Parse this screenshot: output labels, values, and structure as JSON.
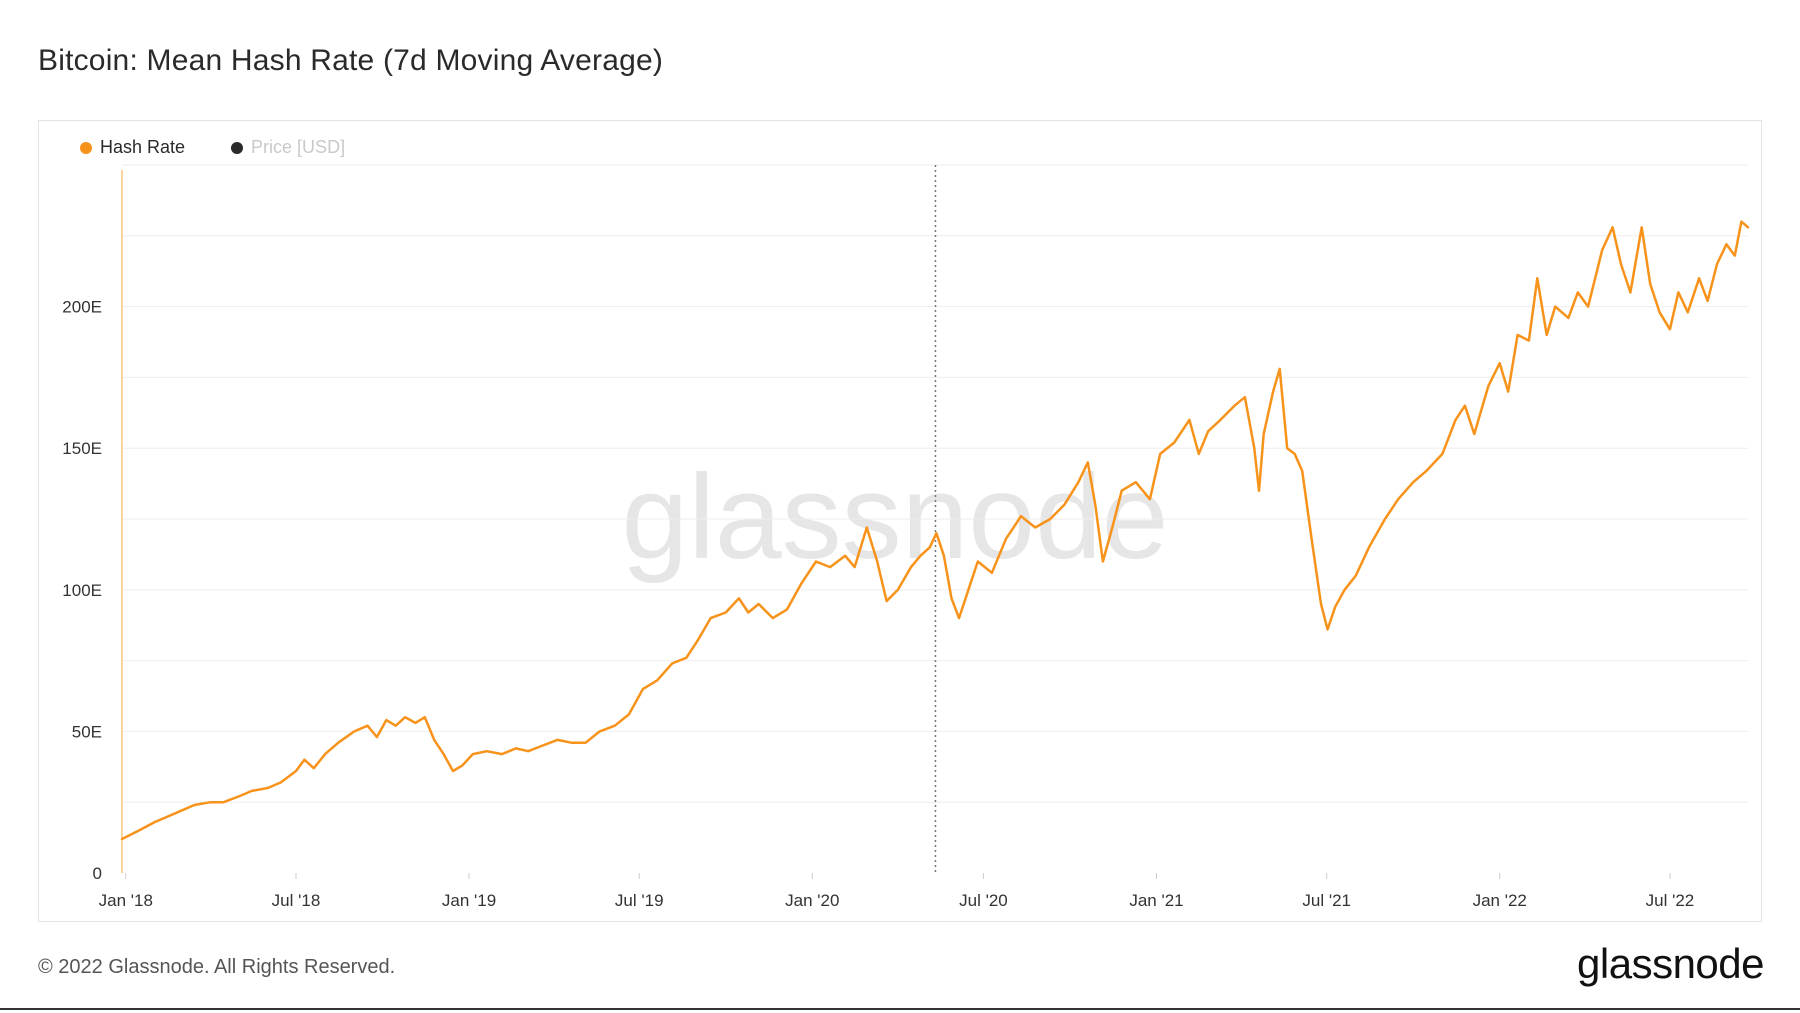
{
  "title": "Bitcoin: Mean Hash Rate (7d Moving Average)",
  "legend": [
    {
      "label": "Hash Rate",
      "color": "#f7931a",
      "active": true
    },
    {
      "label": "Price [USD]",
      "color": "#2b2b2b",
      "active": false
    }
  ],
  "footer": "© 2022 Glassnode. All Rights Reserved.",
  "brand": "glassnode",
  "watermark": "glassnode",
  "chart_data": {
    "type": "line",
    "title": "Bitcoin: Mean Hash Rate (7d Moving Average)",
    "y_unit": "EH/s",
    "ylim": [
      0,
      250
    ],
    "y_ticks": [
      0,
      50,
      100,
      150,
      200
    ],
    "y_tick_labels": [
      "0",
      "50E",
      "100E",
      "150E",
      "200E"
    ],
    "x_ticks": [
      "2018-01-01",
      "2018-07-01",
      "2019-01-01",
      "2019-07-01",
      "2020-01-01",
      "2020-07-01",
      "2021-01-01",
      "2021-07-01",
      "2022-01-01",
      "2022-07-01"
    ],
    "x_tick_labels": [
      "Jan '18",
      "Jul '18",
      "Jan '19",
      "Jul '19",
      "Jan '20",
      "Jul '20",
      "Jan '21",
      "Jul '21",
      "Jan '22",
      "Jul '22"
    ],
    "xlim": [
      "2017-12-28",
      "2022-09-22"
    ],
    "grid": true,
    "legend_position": "top-left",
    "annotations": [
      {
        "type": "vertical-dotted-line",
        "x": "2020-05-11"
      }
    ],
    "series": [
      {
        "name": "Hash Rate",
        "color": "#f7931a",
        "points": [
          [
            "2017-12-28",
            12
          ],
          [
            "2018-01-15",
            15
          ],
          [
            "2018-02-01",
            18
          ],
          [
            "2018-02-15",
            20
          ],
          [
            "2018-03-01",
            22
          ],
          [
            "2018-03-15",
            24
          ],
          [
            "2018-04-01",
            25
          ],
          [
            "2018-04-15",
            25
          ],
          [
            "2018-05-01",
            27
          ],
          [
            "2018-05-15",
            29
          ],
          [
            "2018-06-01",
            30
          ],
          [
            "2018-06-15",
            32
          ],
          [
            "2018-07-01",
            36
          ],
          [
            "2018-07-10",
            40
          ],
          [
            "2018-07-20",
            37
          ],
          [
            "2018-08-01",
            42
          ],
          [
            "2018-08-15",
            46
          ],
          [
            "2018-09-01",
            50
          ],
          [
            "2018-09-15",
            52
          ],
          [
            "2018-09-25",
            48
          ],
          [
            "2018-10-05",
            54
          ],
          [
            "2018-10-15",
            52
          ],
          [
            "2018-10-25",
            55
          ],
          [
            "2018-11-05",
            53
          ],
          [
            "2018-11-15",
            55
          ],
          [
            "2018-11-25",
            47
          ],
          [
            "2018-12-05",
            42
          ],
          [
            "2018-12-15",
            36
          ],
          [
            "2018-12-25",
            38
          ],
          [
            "2019-01-05",
            42
          ],
          [
            "2019-01-20",
            43
          ],
          [
            "2019-02-05",
            42
          ],
          [
            "2019-02-20",
            44
          ],
          [
            "2019-03-05",
            43
          ],
          [
            "2019-03-20",
            45
          ],
          [
            "2019-04-05",
            47
          ],
          [
            "2019-04-20",
            46
          ],
          [
            "2019-05-05",
            46
          ],
          [
            "2019-05-20",
            50
          ],
          [
            "2019-06-05",
            52
          ],
          [
            "2019-06-20",
            56
          ],
          [
            "2019-07-05",
            65
          ],
          [
            "2019-07-20",
            68
          ],
          [
            "2019-08-05",
            74
          ],
          [
            "2019-08-20",
            76
          ],
          [
            "2019-09-01",
            82
          ],
          [
            "2019-09-15",
            90
          ],
          [
            "2019-10-01",
            92
          ],
          [
            "2019-10-15",
            97
          ],
          [
            "2019-10-25",
            92
          ],
          [
            "2019-11-05",
            95
          ],
          [
            "2019-11-20",
            90
          ],
          [
            "2019-12-05",
            93
          ],
          [
            "2019-12-20",
            102
          ],
          [
            "2020-01-05",
            110
          ],
          [
            "2020-01-20",
            108
          ],
          [
            "2020-02-05",
            112
          ],
          [
            "2020-02-15",
            108
          ],
          [
            "2020-02-28",
            122
          ],
          [
            "2020-03-10",
            110
          ],
          [
            "2020-03-20",
            96
          ],
          [
            "2020-04-01",
            100
          ],
          [
            "2020-04-15",
            108
          ],
          [
            "2020-04-25",
            112
          ],
          [
            "2020-05-05",
            115
          ],
          [
            "2020-05-12",
            120
          ],
          [
            "2020-05-20",
            112
          ],
          [
            "2020-05-28",
            97
          ],
          [
            "2020-06-05",
            90
          ],
          [
            "2020-06-15",
            100
          ],
          [
            "2020-06-25",
            110
          ],
          [
            "2020-07-10",
            106
          ],
          [
            "2020-07-25",
            118
          ],
          [
            "2020-08-10",
            126
          ],
          [
            "2020-08-25",
            122
          ],
          [
            "2020-09-10",
            125
          ],
          [
            "2020-09-25",
            130
          ],
          [
            "2020-10-10",
            138
          ],
          [
            "2020-10-20",
            145
          ],
          [
            "2020-10-28",
            130
          ],
          [
            "2020-11-05",
            110
          ],
          [
            "2020-11-15",
            122
          ],
          [
            "2020-11-25",
            135
          ],
          [
            "2020-12-10",
            138
          ],
          [
            "2020-12-25",
            132
          ],
          [
            "2021-01-05",
            148
          ],
          [
            "2021-01-20",
            152
          ],
          [
            "2021-02-05",
            160
          ],
          [
            "2021-02-15",
            148
          ],
          [
            "2021-02-25",
            156
          ],
          [
            "2021-03-10",
            160
          ],
          [
            "2021-03-25",
            165
          ],
          [
            "2021-04-05",
            168
          ],
          [
            "2021-04-15",
            150
          ],
          [
            "2021-04-20",
            135
          ],
          [
            "2021-04-25",
            155
          ],
          [
            "2021-05-05",
            170
          ],
          [
            "2021-05-12",
            178
          ],
          [
            "2021-05-20",
            150
          ],
          [
            "2021-05-28",
            148
          ],
          [
            "2021-06-05",
            142
          ],
          [
            "2021-06-15",
            118
          ],
          [
            "2021-06-25",
            95
          ],
          [
            "2021-07-02",
            86
          ],
          [
            "2021-07-10",
            94
          ],
          [
            "2021-07-20",
            100
          ],
          [
            "2021-08-01",
            105
          ],
          [
            "2021-08-15",
            115
          ],
          [
            "2021-09-01",
            125
          ],
          [
            "2021-09-15",
            132
          ],
          [
            "2021-10-01",
            138
          ],
          [
            "2021-10-15",
            142
          ],
          [
            "2021-11-01",
            148
          ],
          [
            "2021-11-15",
            160
          ],
          [
            "2021-11-25",
            165
          ],
          [
            "2021-12-05",
            155
          ],
          [
            "2021-12-20",
            172
          ],
          [
            "2022-01-01",
            180
          ],
          [
            "2022-01-10",
            170
          ],
          [
            "2022-01-20",
            190
          ],
          [
            "2022-02-01",
            188
          ],
          [
            "2022-02-10",
            210
          ],
          [
            "2022-02-20",
            190
          ],
          [
            "2022-03-01",
            200
          ],
          [
            "2022-03-15",
            196
          ],
          [
            "2022-03-25",
            205
          ],
          [
            "2022-04-05",
            200
          ],
          [
            "2022-04-20",
            220
          ],
          [
            "2022-05-01",
            228
          ],
          [
            "2022-05-10",
            215
          ],
          [
            "2022-05-20",
            205
          ],
          [
            "2022-06-01",
            228
          ],
          [
            "2022-06-10",
            208
          ],
          [
            "2022-06-20",
            198
          ],
          [
            "2022-07-01",
            192
          ],
          [
            "2022-07-10",
            205
          ],
          [
            "2022-07-20",
            198
          ],
          [
            "2022-08-01",
            210
          ],
          [
            "2022-08-10",
            202
          ],
          [
            "2022-08-20",
            215
          ],
          [
            "2022-08-30",
            222
          ],
          [
            "2022-09-08",
            218
          ],
          [
            "2022-09-15",
            230
          ],
          [
            "2022-09-22",
            228
          ]
        ]
      }
    ]
  }
}
